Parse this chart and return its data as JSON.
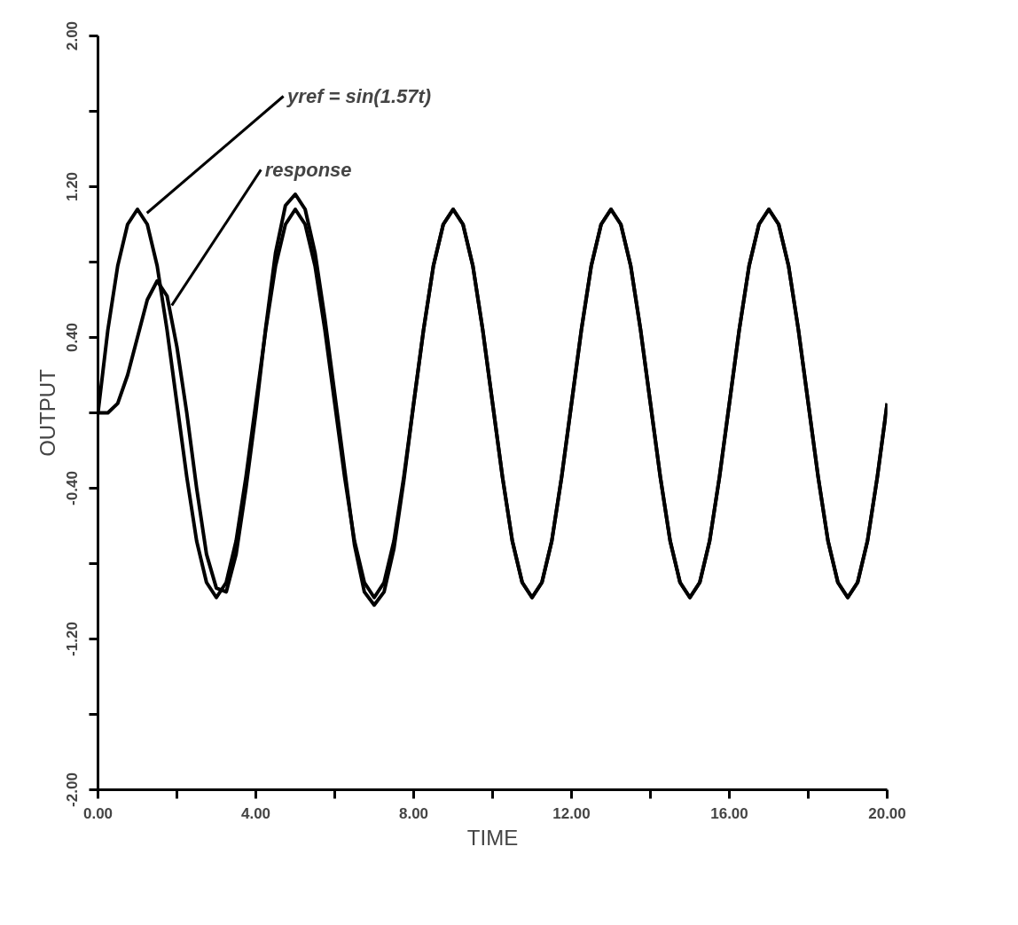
{
  "chart_data": {
    "type": "line",
    "xlabel": "TIME",
    "ylabel": "OUTPUT",
    "x": [
      0,
      0.25,
      0.5,
      0.75,
      1,
      1.25,
      1.5,
      1.75,
      2,
      2.25,
      2.5,
      2.75,
      3,
      3.25,
      3.5,
      3.75,
      4,
      4.25,
      4.5,
      4.75,
      5,
      5.25,
      5.5,
      5.75,
      6,
      6.25,
      6.5,
      6.75,
      7,
      7.25,
      7.5,
      7.75,
      8,
      8.25,
      8.5,
      8.75,
      9,
      9.25,
      9.5,
      9.75,
      10,
      10.25,
      10.5,
      10.75,
      11,
      11.25,
      11.5,
      11.75,
      12,
      12.25,
      12.5,
      12.75,
      13,
      13.25,
      13.5,
      13.75,
      14,
      14.25,
      14.5,
      14.75,
      15,
      15.25,
      15.5,
      15.75,
      16,
      16.25,
      16.5,
      16.75,
      17,
      17.25,
      17.5,
      17.75,
      18,
      18.25,
      18.5,
      18.75,
      19,
      19.25,
      19.5,
      19.75,
      20
    ],
    "series": [
      {
        "color": "#000000",
        "values": [
          0,
          0.44,
          0.78,
          1.0,
          1.08,
          1.0,
          0.78,
          0.44,
          0.05,
          -0.34,
          -0.68,
          -0.9,
          -0.98,
          -0.9,
          -0.68,
          -0.34,
          0.05,
          0.44,
          0.78,
          1.0,
          1.08,
          1.0,
          0.78,
          0.44,
          0.05,
          -0.34,
          -0.68,
          -0.9,
          -0.98,
          -0.9,
          -0.68,
          -0.34,
          0.05,
          0.44,
          0.78,
          1.0,
          1.08,
          1.0,
          0.78,
          0.44,
          0.05,
          -0.34,
          -0.68,
          -0.9,
          -0.98,
          -0.9,
          -0.68,
          -0.34,
          0.05,
          0.44,
          0.78,
          1.0,
          1.08,
          1.0,
          0.78,
          0.44,
          0.05,
          -0.34,
          -0.68,
          -0.9,
          -0.98,
          -0.9,
          -0.68,
          -0.34,
          0.05,
          0.44,
          0.78,
          1.0,
          1.08,
          1.0,
          0.78,
          0.44,
          0.05,
          -0.34,
          -0.68,
          -0.9,
          -0.98,
          -0.9,
          -0.68,
          -0.34,
          0.05
        ]
      },
      {
        "color": "#000000",
        "values": [
          0,
          0,
          0.05,
          0.2,
          0.4,
          0.6,
          0.7,
          0.62,
          0.35,
          0.0,
          -0.4,
          -0.75,
          -0.93,
          -0.95,
          -0.75,
          -0.4,
          0.0,
          0.45,
          0.85,
          1.1,
          1.16,
          1.08,
          0.85,
          0.5,
          0.1,
          -0.3,
          -0.7,
          -0.95,
          -1.02,
          -0.95,
          -0.72,
          -0.36,
          0.05,
          0.44,
          0.78,
          1.0,
          1.08,
          1.0,
          0.78,
          0.44,
          0.05,
          -0.34,
          -0.68,
          -0.9,
          -0.98,
          -0.9,
          -0.68,
          -0.34,
          0.05,
          0.44,
          0.78,
          1.0,
          1.08,
          1.0,
          0.78,
          0.44,
          0.05,
          -0.34,
          -0.68,
          -0.9,
          -0.98,
          -0.9,
          -0.68,
          -0.34,
          0.05,
          0.44,
          0.78,
          1.0,
          1.08,
          1.0,
          0.78,
          0.44,
          0.05,
          -0.34,
          -0.68,
          -0.9,
          -0.98,
          -0.9,
          -0.68,
          -0.34,
          0.05
        ]
      }
    ],
    "xlim": [
      0,
      20
    ],
    "xticks": [
      {
        "value": 0,
        "label": "0.00"
      },
      {
        "value": 2,
        "label": null
      },
      {
        "value": 4,
        "label": "4.00"
      },
      {
        "value": 6,
        "label": null
      },
      {
        "value": 8,
        "label": "8.00"
      },
      {
        "value": 10,
        "label": null
      },
      {
        "value": 12,
        "label": "12.00"
      },
      {
        "value": 14,
        "label": null
      },
      {
        "value": 16,
        "label": "16.00"
      },
      {
        "value": 18,
        "label": null
      },
      {
        "value": 20,
        "label": "20.00"
      }
    ],
    "ylim": [
      -2,
      2
    ],
    "yticks": [
      {
        "value": -2,
        "label": "-2.00"
      },
      {
        "value": -1.6,
        "label": null
      },
      {
        "value": -1.2,
        "label": "-1.20"
      },
      {
        "value": -0.8,
        "label": null
      },
      {
        "value": -0.4,
        "label": "-0.40"
      },
      {
        "value": 0,
        "label": null
      },
      {
        "value": 0.4,
        "label": "0.40"
      },
      {
        "value": 0.8,
        "label": null
      },
      {
        "value": 1.2,
        "label": "1.20"
      },
      {
        "value": 1.6,
        "label": null
      },
      {
        "value": 2,
        "label": "2.00"
      }
    ],
    "annotations": [
      {
        "text": "yref = sin(1.57t)",
        "x": 1.24,
        "y": 1.06
      },
      {
        "text": "response",
        "x": 1.87,
        "y": 0.57
      }
    ],
    "grid": false,
    "marker": "none",
    "line_style": "solid"
  }
}
